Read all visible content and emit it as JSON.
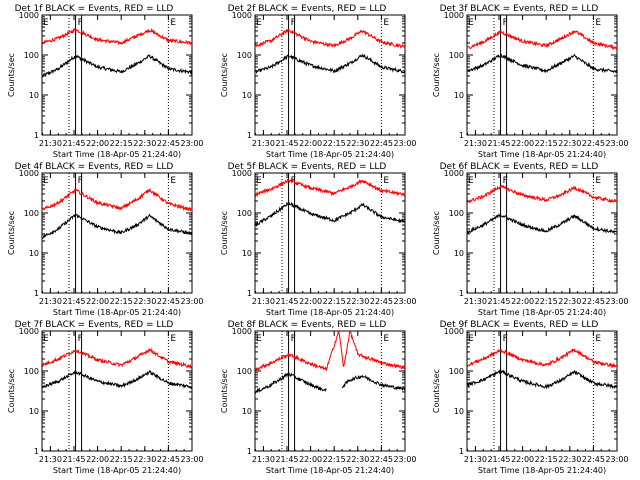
{
  "chart_data": [
    {
      "type": "line",
      "title": "Det 1f BLACK = Events, RED = LLD",
      "ylabel": "Counts/sec",
      "xlabel": "Start Time (18-Apr-05 21:24:40)",
      "x_ticks": [
        "21:30",
        "21:45",
        "22:00",
        "22:15",
        "22:30",
        "22:45",
        "23:00"
      ],
      "y_ticks": [
        "1",
        "10",
        "100",
        "1000"
      ],
      "yscale": "log",
      "xlim": [
        "21:24:40",
        "23:00"
      ],
      "ylim": [
        1,
        1000
      ],
      "markers": [
        {
          "label": "E",
          "time": "21:24:40"
        },
        {
          "label": "F",
          "time": "21:46"
        },
        {
          "label": "E",
          "time": "22:45"
        }
      ],
      "series": [
        {
          "name": "Events",
          "color": "#000000",
          "x": [
            "21:25",
            "21:35",
            "21:46",
            "22:00",
            "22:15",
            "22:25",
            "22:33",
            "22:45",
            "23:00"
          ],
          "y": [
            30,
            45,
            95,
            50,
            38,
            60,
            95,
            45,
            37
          ]
        },
        {
          "name": "LLD",
          "color": "#ff0000",
          "x": [
            "21:25",
            "21:35",
            "21:46",
            "22:00",
            "22:15",
            "22:25",
            "22:33",
            "22:45",
            "23:00"
          ],
          "y": [
            200,
            260,
            430,
            240,
            200,
            300,
            420,
            230,
            200
          ]
        }
      ]
    },
    {
      "type": "line",
      "title": "Det 2f BLACK = Events, RED = LLD",
      "ylabel": "Counts/sec",
      "xlabel": "Start Time (18-Apr-05 21:24:40)",
      "x_ticks": [
        "21:30",
        "21:45",
        "22:00",
        "22:15",
        "22:30",
        "22:45",
        "23:00"
      ],
      "y_ticks": [
        "1",
        "10",
        "100",
        "1000"
      ],
      "yscale": "log",
      "xlim": [
        "21:24:40",
        "23:00"
      ],
      "ylim": [
        1,
        1000
      ],
      "markers": [
        {
          "label": "E",
          "time": "21:24:40"
        },
        {
          "label": "F",
          "time": "21:46"
        },
        {
          "label": "E",
          "time": "22:45"
        }
      ],
      "series": [
        {
          "name": "Events",
          "color": "#000000",
          "x": [
            "21:25",
            "21:35",
            "21:46",
            "22:00",
            "22:15",
            "22:25",
            "22:33",
            "22:45",
            "23:00"
          ],
          "y": [
            38,
            50,
            95,
            55,
            40,
            62,
            100,
            50,
            38
          ]
        },
        {
          "name": "LLD",
          "color": "#ff0000",
          "x": [
            "21:25",
            "21:35",
            "21:46",
            "22:00",
            "22:15",
            "22:25",
            "22:33",
            "22:45",
            "23:00"
          ],
          "y": [
            170,
            230,
            420,
            220,
            170,
            260,
            400,
            210,
            160
          ]
        }
      ]
    },
    {
      "type": "line",
      "title": "Det 3f BLACK = Events, RED = LLD",
      "ylabel": "Counts/sec",
      "xlabel": "Start Time (18-Apr-05 21:24:40)",
      "x_ticks": [
        "21:30",
        "21:45",
        "22:00",
        "22:15",
        "22:30",
        "22:45",
        "23:00"
      ],
      "y_ticks": [
        "1",
        "10",
        "100",
        "1000"
      ],
      "yscale": "log",
      "xlim": [
        "21:24:40",
        "23:00"
      ],
      "ylim": [
        1,
        1000
      ],
      "markers": [
        {
          "label": "E",
          "time": "21:24:40"
        },
        {
          "label": "F",
          "time": "21:46"
        },
        {
          "label": "E",
          "time": "22:45"
        }
      ],
      "series": [
        {
          "name": "Events",
          "color": "#000000",
          "x": [
            "21:25",
            "21:35",
            "21:46",
            "22:00",
            "22:15",
            "22:25",
            "22:33",
            "22:45",
            "23:00"
          ],
          "y": [
            40,
            55,
            100,
            55,
            40,
            65,
            95,
            45,
            38
          ]
        },
        {
          "name": "LLD",
          "color": "#ff0000",
          "x": [
            "21:25",
            "21:35",
            "21:46",
            "22:00",
            "22:15",
            "22:25",
            "22:33",
            "22:45",
            "23:00"
          ],
          "y": [
            150,
            210,
            380,
            220,
            170,
            260,
            400,
            200,
            150
          ]
        }
      ]
    },
    {
      "type": "line",
      "title": "Det 4f BLACK = Events, RED = LLD",
      "ylabel": "Counts/sec",
      "xlabel": "Start Time (18-Apr-05 21:24:40)",
      "x_ticks": [
        "21:30",
        "21:45",
        "22:00",
        "22:15",
        "22:30",
        "22:45",
        "23:00"
      ],
      "y_ticks": [
        "1",
        "10",
        "100",
        "1000"
      ],
      "yscale": "log",
      "xlim": [
        "21:24:40",
        "23:00"
      ],
      "ylim": [
        1,
        1000
      ],
      "markers": [
        {
          "label": "E",
          "time": "21:24:40"
        },
        {
          "label": "F",
          "time": "21:46"
        },
        {
          "label": "E",
          "time": "22:45"
        }
      ],
      "series": [
        {
          "name": "Events",
          "color": "#000000",
          "x": [
            "21:25",
            "21:35",
            "21:46",
            "22:00",
            "22:15",
            "22:25",
            "22:33",
            "22:45",
            "23:00"
          ],
          "y": [
            25,
            40,
            90,
            45,
            32,
            50,
            85,
            40,
            30
          ]
        },
        {
          "name": "LLD",
          "color": "#ff0000",
          "x": [
            "21:25",
            "21:35",
            "21:46",
            "22:00",
            "22:15",
            "22:25",
            "22:33",
            "22:45",
            "23:00"
          ],
          "y": [
            120,
            180,
            370,
            180,
            130,
            220,
            380,
            170,
            120
          ]
        }
      ]
    },
    {
      "type": "line",
      "title": "Det 5f BLACK = Events, RED = LLD",
      "ylabel": "Counts/sec",
      "xlabel": "Start Time (18-Apr-05 21:24:40)",
      "x_ticks": [
        "21:30",
        "21:45",
        "22:00",
        "22:15",
        "22:30",
        "22:45",
        "23:00"
      ],
      "y_ticks": [
        "1",
        "10",
        "100",
        "1000"
      ],
      "yscale": "log",
      "xlim": [
        "21:24:40",
        "23:00"
      ],
      "ylim": [
        1,
        1000
      ],
      "markers": [
        {
          "label": "E",
          "time": "21:24:40"
        },
        {
          "label": "F",
          "time": "21:46"
        },
        {
          "label": "E",
          "time": "22:45"
        }
      ],
      "series": [
        {
          "name": "Events",
          "color": "#000000",
          "x": [
            "21:25",
            "21:35",
            "21:46",
            "22:00",
            "22:15",
            "22:25",
            "22:33",
            "22:45",
            "23:00"
          ],
          "y": [
            50,
            85,
            175,
            95,
            65,
            100,
            160,
            80,
            60
          ]
        },
        {
          "name": "LLD",
          "color": "#ff0000",
          "x": [
            "21:25",
            "21:35",
            "21:46",
            "22:00",
            "22:15",
            "22:25",
            "22:33",
            "22:45",
            "23:00"
          ],
          "y": [
            290,
            400,
            650,
            420,
            310,
            450,
            650,
            360,
            290
          ]
        }
      ]
    },
    {
      "type": "line",
      "title": "Det 6f BLACK = Events, RED = LLD",
      "ylabel": "Counts/sec",
      "xlabel": "Start Time (18-Apr-05 21:24:40)",
      "x_ticks": [
        "21:30",
        "21:45",
        "22:00",
        "22:15",
        "22:30",
        "22:45",
        "23:00"
      ],
      "y_ticks": [
        "1",
        "10",
        "100",
        "1000"
      ],
      "yscale": "log",
      "xlim": [
        "21:24:40",
        "23:00"
      ],
      "ylim": [
        1,
        1000
      ],
      "markers": [
        {
          "label": "E",
          "time": "21:24:40"
        },
        {
          "label": "F",
          "time": "21:46"
        },
        {
          "label": "E",
          "time": "22:45"
        }
      ],
      "series": [
        {
          "name": "Events",
          "color": "#000000",
          "x": [
            "21:25",
            "21:35",
            "21:46",
            "22:00",
            "22:15",
            "22:25",
            "22:33",
            "22:45",
            "23:00"
          ],
          "y": [
            33,
            50,
            90,
            50,
            35,
            55,
            85,
            42,
            32
          ]
        },
        {
          "name": "LLD",
          "color": "#ff0000",
          "x": [
            "21:25",
            "21:35",
            "21:46",
            "22:00",
            "22:15",
            "22:25",
            "22:33",
            "22:45",
            "23:00"
          ],
          "y": [
            190,
            260,
            460,
            280,
            210,
            290,
            430,
            250,
            190
          ]
        }
      ]
    },
    {
      "type": "line",
      "title": "Det 7f BLACK = Events, RED = LLD",
      "ylabel": "Counts/sec",
      "xlabel": "Start Time (18-Apr-05 21:24:40)",
      "x_ticks": [
        "21:30",
        "21:45",
        "22:00",
        "22:15",
        "22:30",
        "22:45",
        "23:00"
      ],
      "y_ticks": [
        "1",
        "10",
        "100",
        "1000"
      ],
      "yscale": "log",
      "xlim": [
        "21:24:40",
        "23:00"
      ],
      "ylim": [
        1,
        1000
      ],
      "markers": [
        {
          "label": "E",
          "time": "21:24:40"
        },
        {
          "label": "F",
          "time": "21:46"
        },
        {
          "label": "E",
          "time": "22:45"
        }
      ],
      "series": [
        {
          "name": "Events",
          "color": "#000000",
          "x": [
            "21:25",
            "21:35",
            "21:46",
            "22:00",
            "22:15",
            "22:25",
            "22:33",
            "22:45",
            "23:00"
          ],
          "y": [
            40,
            55,
            95,
            55,
            42,
            62,
            95,
            50,
            40
          ]
        },
        {
          "name": "LLD",
          "color": "#ff0000",
          "x": [
            "21:25",
            "21:35",
            "21:46",
            "22:00",
            "22:15",
            "22:25",
            "22:33",
            "22:45",
            "23:00"
          ],
          "y": [
            140,
            200,
            330,
            190,
            140,
            220,
            340,
            170,
            130
          ]
        }
      ]
    },
    {
      "type": "line",
      "title": "Det 8f BLACK = Events, RED = LLD",
      "ylabel": "Counts/sec",
      "xlabel": "Start Time (18-Apr-05 21:24:40)",
      "x_ticks": [
        "21:30",
        "21:45",
        "22:00",
        "22:15",
        "22:30",
        "22:45",
        "23:00"
      ],
      "y_ticks": [
        "1",
        "10",
        "100",
        "1000"
      ],
      "yscale": "log",
      "xlim": [
        "21:24:40",
        "23:00"
      ],
      "ylim": [
        1,
        1000
      ],
      "markers": [
        {
          "label": "E",
          "time": "21:24:40"
        },
        {
          "label": "F",
          "time": "21:46"
        },
        {
          "label": "E",
          "time": "22:45"
        }
      ],
      "series": [
        {
          "name": "Events",
          "color": "#000000",
          "x": [
            "21:25",
            "21:35",
            "21:46",
            "22:00",
            "22:10",
            "22:16",
            "22:20",
            "22:25",
            "22:33",
            "22:45",
            "23:00"
          ],
          "y": [
            30,
            45,
            85,
            45,
            32,
            null,
            40,
            60,
            75,
            45,
            35
          ]
        },
        {
          "name": "LLD",
          "color": "#ff0000",
          "x": [
            "21:25",
            "21:35",
            "21:46",
            "22:00",
            "22:10",
            "22:18",
            "22:21",
            "22:25",
            "22:30",
            "22:45",
            "23:00"
          ],
          "y": [
            110,
            160,
            260,
            150,
            110,
            1000,
            120,
            1000,
            260,
            160,
            120
          ]
        }
      ]
    },
    {
      "type": "line",
      "title": "Det 9f BLACK = Events, RED = LLD",
      "ylabel": "Counts/sec",
      "xlabel": "Start Time (18-Apr-05 21:24:40)",
      "x_ticks": [
        "21:30",
        "21:45",
        "22:00",
        "22:15",
        "22:30",
        "22:45",
        "23:00"
      ],
      "y_ticks": [
        "1",
        "10",
        "100",
        "1000"
      ],
      "yscale": "log",
      "xlim": [
        "21:24:40",
        "23:00"
      ],
      "ylim": [
        1,
        1000
      ],
      "markers": [
        {
          "label": "E",
          "time": "21:24:40"
        },
        {
          "label": "F",
          "time": "21:46"
        },
        {
          "label": "E",
          "time": "22:45"
        }
      ],
      "series": [
        {
          "name": "Events",
          "color": "#000000",
          "x": [
            "21:25",
            "21:35",
            "21:46",
            "22:00",
            "22:15",
            "22:25",
            "22:33",
            "22:45",
            "23:00"
          ],
          "y": [
            45,
            60,
            100,
            55,
            40,
            60,
            95,
            50,
            40
          ]
        },
        {
          "name": "LLD",
          "color": "#ff0000",
          "x": [
            "21:25",
            "21:35",
            "21:46",
            "22:00",
            "22:15",
            "22:25",
            "22:33",
            "22:45",
            "23:00"
          ],
          "y": [
            140,
            200,
            330,
            190,
            140,
            220,
            340,
            170,
            130
          ]
        }
      ]
    }
  ]
}
